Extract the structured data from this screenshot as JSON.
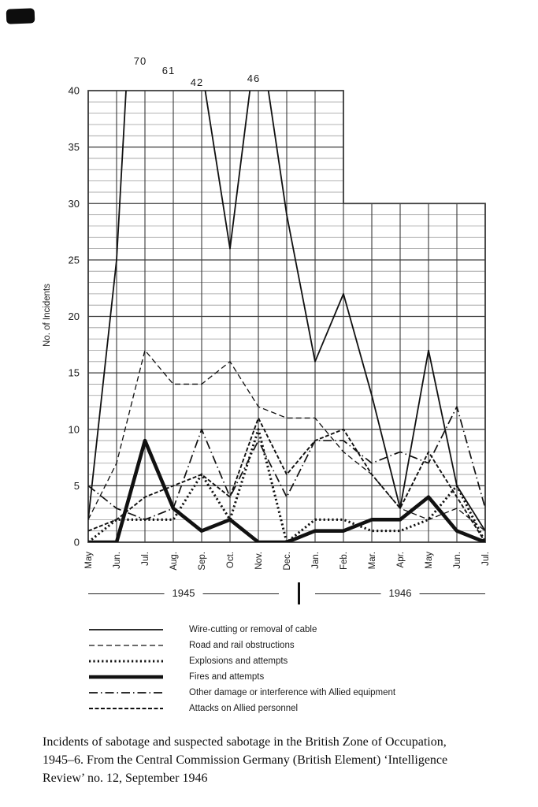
{
  "chart_data": {
    "type": "line",
    "title": "",
    "ylabel": "No. of Incidents",
    "xlabel": "",
    "x": [
      "May",
      "Jun.",
      "Jul.",
      "Aug.",
      "Sep.",
      "Oct.",
      "Nov.",
      "Dec.",
      "Jan.",
      "Feb.",
      "Mar.",
      "Apr.",
      "May",
      "Jun.",
      "Jul."
    ],
    "year_groups": [
      {
        "label": "1945",
        "start_month_index": 0,
        "end_month_index": 7
      },
      {
        "label": "1946",
        "start_month_index": 8,
        "end_month_index": 14
      }
    ],
    "ylim": [
      0,
      40
    ],
    "ytick_step": 5,
    "grid": "graph-paper, 1-unit rows; rows above 30 exist only from May 1945 to Feb 1946 (stepped plot frame)",
    "legend_position": "below",
    "off_scale_labels": [
      {
        "text": "70",
        "month_index": 2
      },
      {
        "text": "61",
        "month_index": 3
      },
      {
        "text": "42",
        "month_index": 4
      },
      {
        "text": "46",
        "month_index": 6
      }
    ],
    "series": [
      {
        "name": "Wire-cutting or removal of cable",
        "style": "solid-thin",
        "values": [
          2,
          25,
          70,
          61,
          42,
          26,
          46,
          29,
          16,
          22,
          13,
          3,
          17,
          5,
          1
        ]
      },
      {
        "name": "Road and rail obstructions",
        "style": "dashed",
        "values": [
          2,
          7,
          17,
          14,
          14,
          16,
          12,
          11,
          11,
          8,
          6,
          3,
          2,
          3,
          1
        ]
      },
      {
        "name": "Explosions and attempts",
        "style": "dotted-heavy",
        "values": [
          0,
          2,
          2,
          2,
          6,
          2,
          10,
          0,
          2,
          2,
          1,
          1,
          2,
          5,
          0
        ]
      },
      {
        "name": "Fires and attempts",
        "style": "solid-thick",
        "values": [
          0,
          0,
          9,
          3,
          1,
          2,
          0,
          0,
          1,
          1,
          2,
          2,
          4,
          1,
          0
        ]
      },
      {
        "name": "Other damage or interference with Allied equipment",
        "style": "dash-dot",
        "values": [
          5,
          3,
          2,
          3,
          10,
          4,
          9,
          4,
          9,
          9,
          7,
          8,
          7,
          12,
          3
        ]
      },
      {
        "name": "Attacks on Allied personnel",
        "style": "fine-dash",
        "values": [
          1,
          2,
          4,
          5,
          6,
          4,
          11,
          6,
          9,
          10,
          6,
          3,
          8,
          4,
          0
        ]
      }
    ]
  },
  "caption": {
    "line1": "Incidents of sabotage and suspected sabotage in the British Zone of Occupation,",
    "line2": "1945–6. From the Central Commission Germany (British Element) ‘Intelligence",
    "line3": "Review’ no. 12, September 1946"
  },
  "colors": {
    "ink": "#111111",
    "grid_minor": "#9a9a9a",
    "grid_major": "#3a3a3a",
    "paper": "#ffffff"
  }
}
